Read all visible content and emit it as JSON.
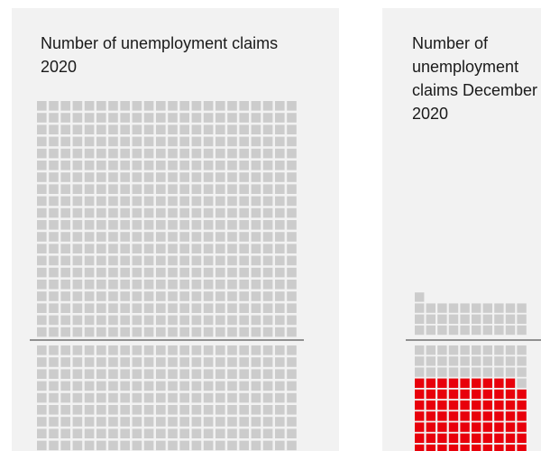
{
  "colors": {
    "panel_bg": "#f2f2f2",
    "empty_cell": "#cccccc",
    "highlight_cell": "#e8000b",
    "divider_line": "#555555",
    "text": "#1a1a1a"
  },
  "panels": [
    {
      "title": "Number of unemployment claims 2020"
    },
    {
      "title": "Number of unemployment claims December 2020"
    }
  ],
  "chart_data": [
    {
      "type": "waffle",
      "title": "Number of unemployment claims 2020",
      "columns": 22,
      "rows_above_divider": 20,
      "rows_below_divider_visible": 9,
      "cells_above_divider": 440,
      "highlighted_cells": 0,
      "divider": true
    },
    {
      "type": "waffle",
      "title": "Number of unemployment claims December 2020",
      "columns": 10,
      "cells_above_divider": 31,
      "rows_below_divider_visible": 9,
      "highlighted_cells_start_row_below_divider": 3,
      "highlighted_columns": 9,
      "divider": true
    }
  ]
}
